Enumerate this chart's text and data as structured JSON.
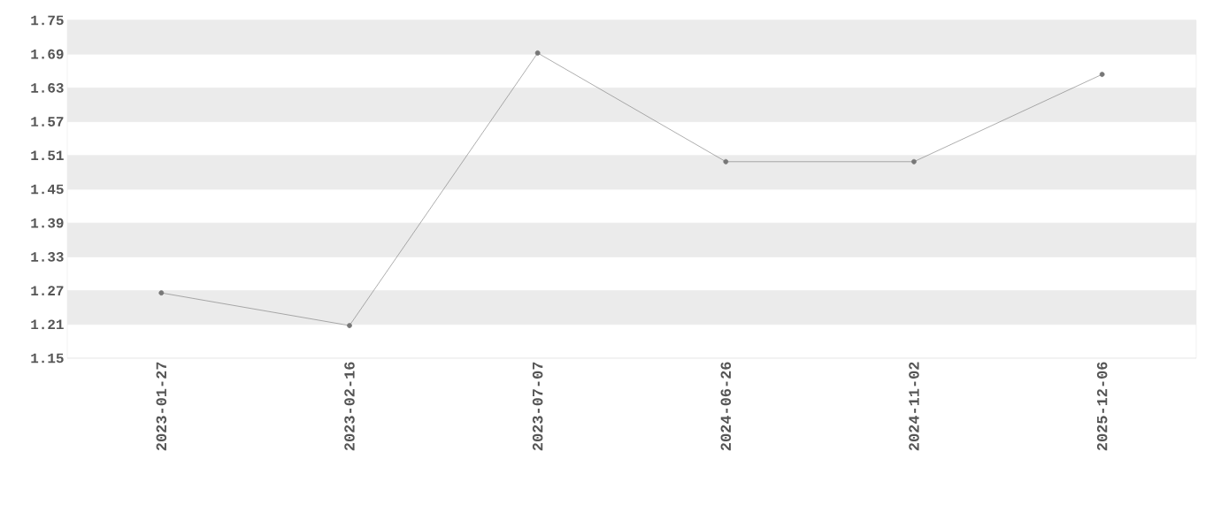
{
  "chart_data": {
    "type": "line",
    "categories": [
      "2023-01-27",
      "2023-02-16",
      "2023-07-07",
      "2024-06-26",
      "2024-11-02",
      "2025-12-06"
    ],
    "values": [
      1.266,
      1.208,
      1.692,
      1.499,
      1.499,
      1.654
    ],
    "color": "#777777",
    "marker": "circle",
    "line_style": "solid",
    "ylim": [
      1.15,
      1.75
    ],
    "yticks": [
      1.15,
      1.21,
      1.27,
      1.33,
      1.39,
      1.45,
      1.51,
      1.57,
      1.63,
      1.69,
      1.75
    ],
    "grid": "y"
  }
}
